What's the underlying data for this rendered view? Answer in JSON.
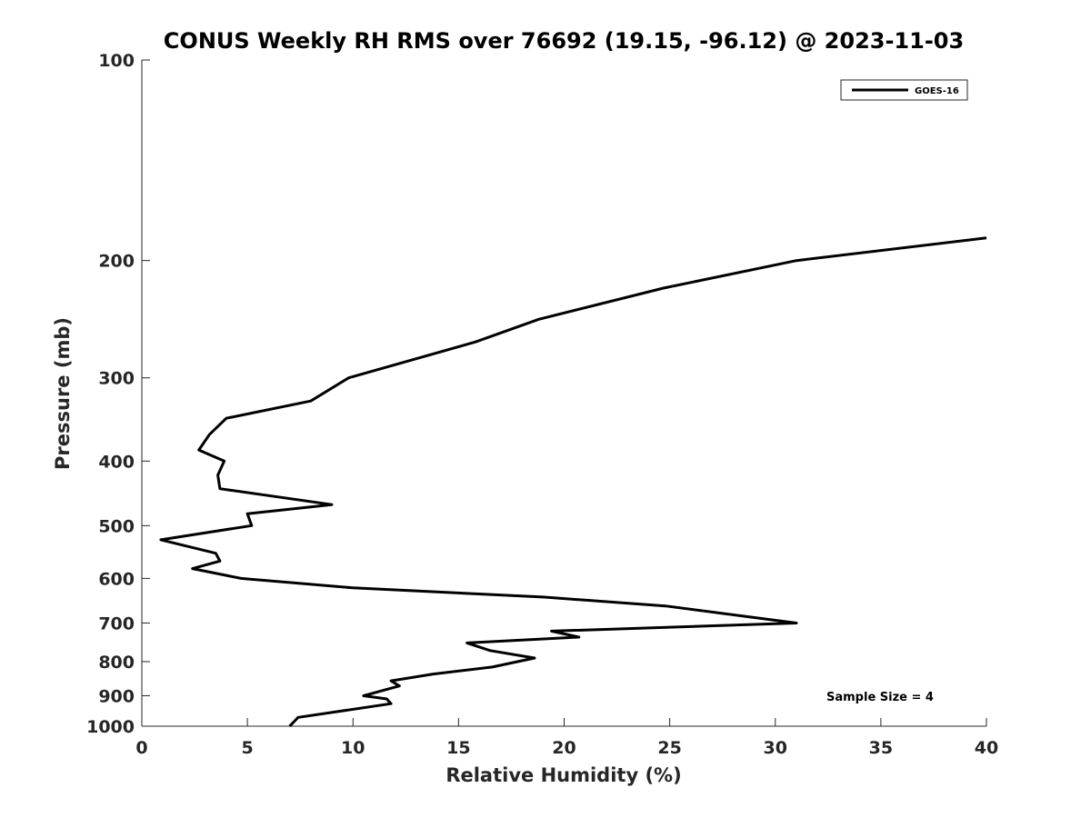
{
  "chart_data": {
    "type": "line",
    "title": "CONUS Weekly RH RMS over 76692 (19.15, -96.12) @ 2023-11-03",
    "xlabel": "Relative Humidity (%)",
    "ylabel": "Pressure (mb)",
    "xlim": [
      0,
      40
    ],
    "ylim": [
      1000,
      100
    ],
    "yscale": "log",
    "yaxis_reversed": true,
    "xticks": [
      0,
      5,
      10,
      15,
      20,
      25,
      30,
      35,
      40
    ],
    "yticks": [
      100,
      200,
      300,
      400,
      500,
      600,
      700,
      800,
      900,
      1000
    ],
    "xtick_labels": [
      "0",
      "5",
      "10",
      "15",
      "20",
      "25",
      "30",
      "35",
      "40"
    ],
    "ytick_labels": [
      "100",
      "200",
      "300",
      "400",
      "500",
      "600",
      "700",
      "800",
      "900",
      "1000"
    ],
    "grid": false,
    "legend_position": "top-right",
    "series": [
      {
        "name": "GOES-16",
        "color": "#000000",
        "points": [
          {
            "x": 40.0,
            "y": 185
          },
          {
            "x": 31.0,
            "y": 200
          },
          {
            "x": 24.7,
            "y": 220
          },
          {
            "x": 18.8,
            "y": 245
          },
          {
            "x": 15.8,
            "y": 265
          },
          {
            "x": 9.8,
            "y": 300
          },
          {
            "x": 8.0,
            "y": 325
          },
          {
            "x": 4.0,
            "y": 345
          },
          {
            "x": 3.2,
            "y": 365
          },
          {
            "x": 2.7,
            "y": 385
          },
          {
            "x": 3.9,
            "y": 400
          },
          {
            "x": 3.6,
            "y": 420
          },
          {
            "x": 3.7,
            "y": 440
          },
          {
            "x": 9.0,
            "y": 465
          },
          {
            "x": 5.0,
            "y": 480
          },
          {
            "x": 5.2,
            "y": 500
          },
          {
            "x": 0.9,
            "y": 525
          },
          {
            "x": 3.5,
            "y": 550
          },
          {
            "x": 3.7,
            "y": 565
          },
          {
            "x": 2.4,
            "y": 580
          },
          {
            "x": 4.7,
            "y": 600
          },
          {
            "x": 10.0,
            "y": 620
          },
          {
            "x": 19.0,
            "y": 640
          },
          {
            "x": 24.8,
            "y": 660
          },
          {
            "x": 31.0,
            "y": 700
          },
          {
            "x": 19.4,
            "y": 720
          },
          {
            "x": 20.7,
            "y": 735
          },
          {
            "x": 15.4,
            "y": 750
          },
          {
            "x": 16.5,
            "y": 770
          },
          {
            "x": 18.6,
            "y": 790
          },
          {
            "x": 16.6,
            "y": 815
          },
          {
            "x": 13.8,
            "y": 835
          },
          {
            "x": 11.8,
            "y": 855
          },
          {
            "x": 12.2,
            "y": 870
          },
          {
            "x": 10.5,
            "y": 900
          },
          {
            "x": 11.6,
            "y": 910
          },
          {
            "x": 11.8,
            "y": 925
          },
          {
            "x": 7.4,
            "y": 970
          },
          {
            "x": 7.0,
            "y": 1000
          }
        ]
      }
    ],
    "annotations": [
      {
        "text": "Sample Size = 4"
      }
    ]
  }
}
